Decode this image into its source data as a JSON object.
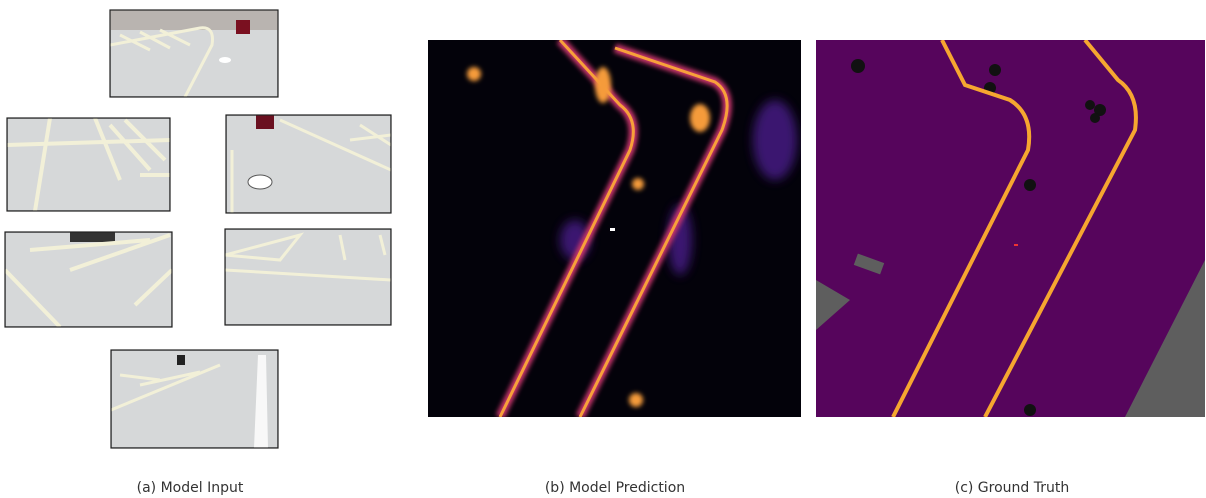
{
  "captions": {
    "input": "(a) Model Input",
    "prediction": "(b) Model Prediction",
    "ground_truth": "(c) Ground Truth"
  }
}
